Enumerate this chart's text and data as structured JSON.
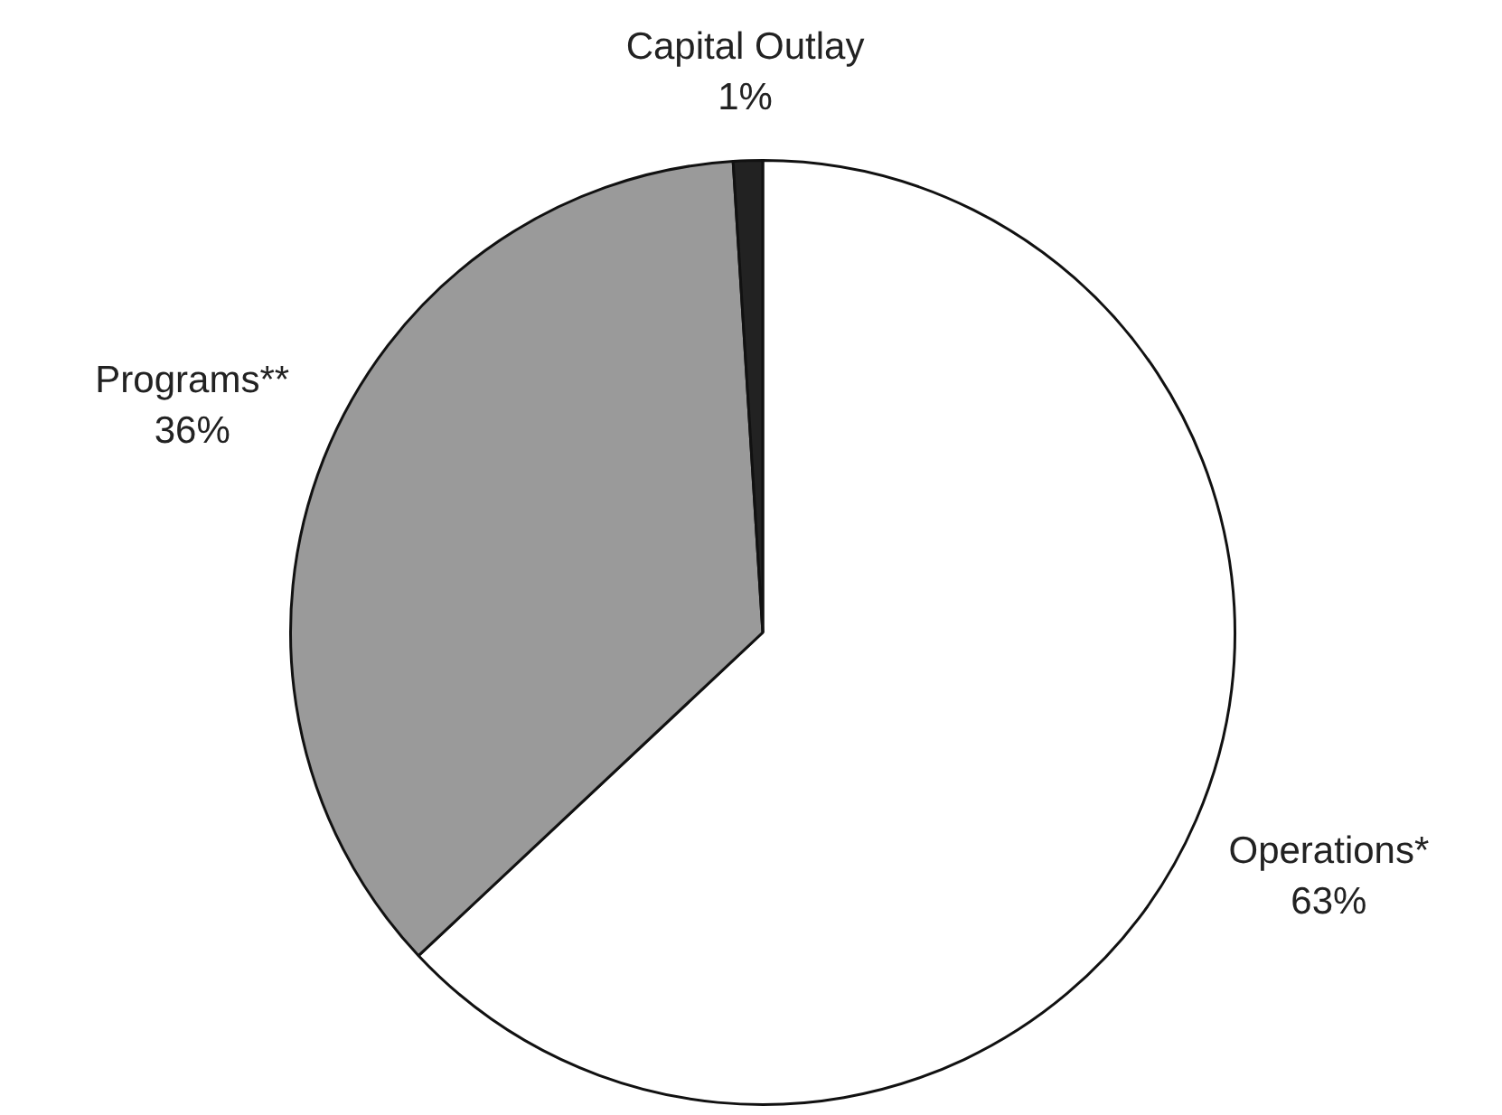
{
  "chart_data": {
    "type": "pie",
    "categories": [
      "Operations*",
      "Programs**",
      "Capital Outlay"
    ],
    "values": [
      63,
      36,
      1
    ],
    "colors": [
      "#ffffff",
      "#9a9a9a",
      "#222222"
    ],
    "value_labels": [
      "63%",
      "36%",
      "1%"
    ],
    "legend": false
  }
}
